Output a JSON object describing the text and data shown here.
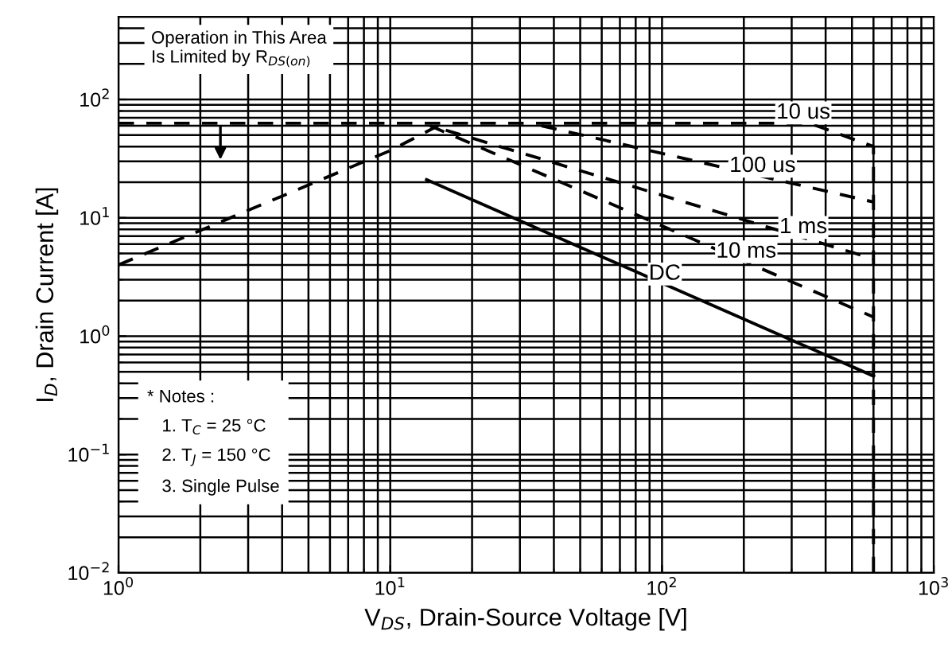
{
  "chart_data": {
    "type": "line",
    "xlabel": "V$_{DS}$, Drain-Source Voltage [V]",
    "ylabel": "I$_{D}$, Drain Current [A]",
    "log": "xy",
    "xlim": [
      1,
      1000
    ],
    "ylim": [
      0.01,
      500
    ],
    "xticks": [
      {
        "value": 1,
        "label": "10$^{0}$"
      },
      {
        "value": 10,
        "label": "10$^{1}$"
      },
      {
        "value": 100,
        "label": "10$^{2}$"
      },
      {
        "value": 1000,
        "label": "10$^{3}$"
      }
    ],
    "yticks": [
      {
        "value": 0.01,
        "label": "10$^{−2}$"
      },
      {
        "value": 0.1,
        "label": "10$^{−1}$"
      },
      {
        "value": 1,
        "label": "10$^{0}$"
      },
      {
        "value": 10,
        "label": "10$^{1}$"
      },
      {
        "value": 100,
        "label": "10$^{2}$"
      }
    ],
    "grid": true,
    "legend": false,
    "series": [
      {
        "x": [
          1,
          10,
          15
        ],
        "values": [
          4,
          37,
          60
        ],
        "color": "#000000",
        "line_style": "dashed"
      },
      {
        "name": "10 us",
        "x": [
          1,
          350,
          600,
          600
        ],
        "values": [
          63,
          63,
          40,
          0.01
        ],
        "color": "#000000",
        "line_style": "dashed"
      },
      {
        "name": "100 us",
        "x": [
          36,
          600
        ],
        "values": [
          60,
          13.6
        ],
        "color": "#000000",
        "line_style": "dashed"
      },
      {
        "name": "1 ms",
        "x": [
          16,
          600
        ],
        "values": [
          55,
          4.5
        ],
        "color": "#000000",
        "line_style": "dashed"
      },
      {
        "name": "10 ms",
        "x": [
          14,
          600
        ],
        "values": [
          60,
          1.45
        ],
        "color": "#000000",
        "line_style": "dashed"
      },
      {
        "name": "DC",
        "x": [
          13.6,
          600
        ],
        "values": [
          21,
          0.46
        ],
        "color": "#000000",
        "line_style": "solid"
      }
    ],
    "annotations": [
      "Operation in This Area\nIs Limited by R$_{DS(on)}$",
      "* Notes :\n   1. T$_{C}$ = 25 °C\n   2. T$_{J}$ = 150 °C\n   3. Single Pulse"
    ]
  }
}
